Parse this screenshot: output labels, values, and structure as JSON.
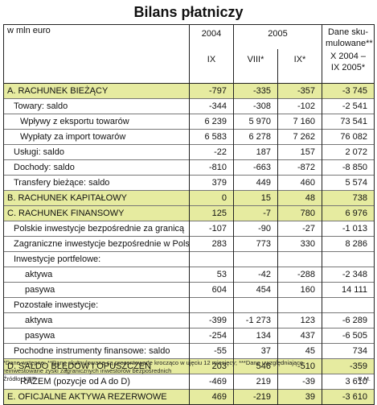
{
  "title": "Bilans płatniczy",
  "header": {
    "unit": "w mln euro",
    "year_2004": "2004",
    "year_2005": "2005",
    "cumulative_label": "Dane sku-\nmulowane**",
    "month_ix_2004": "IX",
    "month_viii_2005": "VIII*",
    "month_ix_2005": "IX*",
    "cumulative_period": "X 2004 –\nIX 2005*"
  },
  "rows": [
    {
      "label": "A. RACHUNEK BIEŻĄCY",
      "values": [
        "-797",
        "-335",
        "-357",
        "-3 745"
      ],
      "indent": 0,
      "highlight": true
    },
    {
      "label": "Towary: saldo",
      "values": [
        "-344",
        "-308",
        "-102",
        "-2 541"
      ],
      "indent": 1,
      "highlight": false
    },
    {
      "label": "Wpływy z eksportu towarów",
      "values": [
        "6 239",
        "5 970",
        "7 160",
        "73 541"
      ],
      "indent": 2,
      "highlight": false
    },
    {
      "label": "Wypłaty za import towarów",
      "values": [
        "6 583",
        "6 278",
        "7 262",
        "76 082"
      ],
      "indent": 2,
      "highlight": false
    },
    {
      "label": "Usługi: saldo",
      "values": [
        "-22",
        "187",
        "157",
        "2 072"
      ],
      "indent": 1,
      "highlight": false
    },
    {
      "label": "Dochody: saldo",
      "values": [
        "-810",
        "-663",
        "-872",
        "-8 850"
      ],
      "indent": 1,
      "highlight": false
    },
    {
      "label": "Transfery bieżące: saldo",
      "values": [
        "379",
        "449",
        "460",
        "5 574"
      ],
      "indent": 1,
      "highlight": false
    },
    {
      "label": "B. RACHUNEK KAPITAŁOWY",
      "values": [
        "0",
        "15",
        "48",
        "738"
      ],
      "indent": 0,
      "highlight": true
    },
    {
      "label": "C. RACHUNEK FINANSOWY",
      "values": [
        "125",
        "-7",
        "780",
        "6 976"
      ],
      "indent": 0,
      "highlight": true
    },
    {
      "label": "Polskie inwestycje bezpośrednie za granicą",
      "values": [
        "-107",
        "-90",
        "-27",
        "-1 013"
      ],
      "indent": 1,
      "highlight": false
    },
    {
      "label": "Zagraniczne inwestycje bezpośrednie w Polsce***",
      "values": [
        "283",
        "773",
        "330",
        "8 286"
      ],
      "indent": 1,
      "highlight": false
    },
    {
      "label": "Inwestycje portfelowe:",
      "values": [
        "",
        "",
        "",
        ""
      ],
      "indent": 1,
      "highlight": false
    },
    {
      "label": "aktywa",
      "values": [
        "53",
        "-42",
        "-288",
        "-2 348"
      ],
      "indent": 3,
      "highlight": false
    },
    {
      "label": "pasywa",
      "values": [
        "604",
        "454",
        "160",
        "14 111"
      ],
      "indent": 3,
      "highlight": false
    },
    {
      "label": "Pozostałe inwestycje:",
      "values": [
        "",
        "",
        "",
        ""
      ],
      "indent": 1,
      "highlight": false
    },
    {
      "label": "aktywa",
      "values": [
        "-399",
        "-1 273",
        "123",
        "-6 289"
      ],
      "indent": 3,
      "highlight": false
    },
    {
      "label": "pasywa",
      "values": [
        "-254",
        "134",
        "437",
        "-6 505"
      ],
      "indent": 3,
      "highlight": false
    },
    {
      "label": "Pochodne instrumenty finansowe: saldo",
      "values": [
        "-55",
        "37",
        "45",
        "734"
      ],
      "indent": 1,
      "highlight": false
    },
    {
      "label": "D. SALDO BŁĘDÓW I OPUSZCZEŃ",
      "values": [
        "203",
        "546",
        "-510",
        "-359"
      ],
      "indent": 0,
      "highlight": true
    },
    {
      "label": "RAZEM (pozycje od A do D)",
      "values": [
        "-469",
        "219",
        "-39",
        "3 610"
      ],
      "indent": 2,
      "highlight": false
    },
    {
      "label": "E. OFICJALNE AKTYWA REZERWOWE",
      "values": [
        "469",
        "-219",
        "39",
        "-3 610"
      ],
      "indent": 0,
      "highlight": true
    }
  ],
  "footnote_1": "*Dane wstępne; **Dane skumulowane są prezentowane krocząco w ujęciu 12 miesięcy; ***Dane uwzględniające",
  "footnote_2": "reinwestowane zyski zagranicznych inwestorów bezpośrednich",
  "source": "Źródło: NBP",
  "credit": "R.M."
}
